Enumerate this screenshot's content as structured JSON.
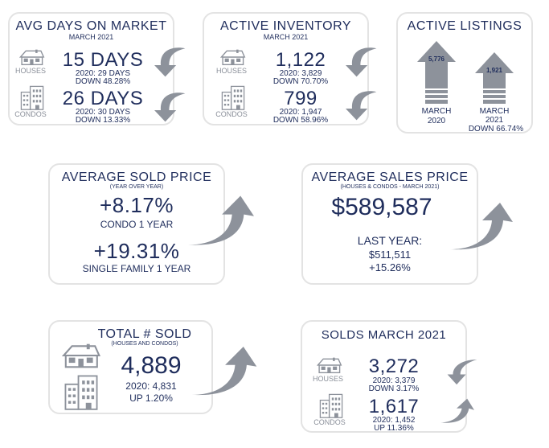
{
  "avg_days": {
    "title": "AVG DAYS ON MARKET",
    "period": "MARCH 2021",
    "houses_label": "HOUSES",
    "houses_value": "15 DAYS",
    "houses_prev": "2020: 29 DAYS",
    "houses_change": "DOWN 48.28%",
    "condos_label": "CONDOS",
    "condos_value": "26 DAYS",
    "condos_prev": "2020: 30 DAYS",
    "condos_change": "DOWN 13.33%"
  },
  "active_inventory": {
    "title": "ACTIVE INVENTORY",
    "period": "MARCH 2021",
    "houses_label": "HOUSES",
    "houses_value": "1,122",
    "houses_prev": "2020: 3,829",
    "houses_change": "DOWN 70.70%",
    "condos_label": "CONDOS",
    "condos_value": "799",
    "condos_prev": "2020: 1,947",
    "condos_change": "DOWN 58.96%"
  },
  "active_listings": {
    "title": "ACTIVE LISTINGS",
    "left_value": "5,776",
    "left_label_1": "MARCH",
    "left_label_2": "2020",
    "right_value": "1,921",
    "right_label_1": "MARCH",
    "right_label_2": "2021",
    "right_change": "DOWN 66.74%"
  },
  "avg_sold_price": {
    "title": "AVERAGE SOLD PRICE",
    "subtitle": "(YEAR OVER YEAR)",
    "condo_value": "+8.17%",
    "condo_label": "CONDO 1 YEAR",
    "sf_value": "+19.31%",
    "sf_label": "SINGLE FAMILY 1 YEAR"
  },
  "avg_sales_price": {
    "title": "AVERAGE SALES PRICE",
    "subtitle": "(HOUSES & CONDOS - MARCH 2021)",
    "value": "$589,587",
    "last_year_label": "LAST YEAR:",
    "last_year_value": "$511,511",
    "change": "+15.26%"
  },
  "total_sold": {
    "title": "TOTAL # SOLD",
    "subtitle": "(HOUSES AND CONDOS)",
    "value": "4,889",
    "prev": "2020: 4,831",
    "change": "UP 1.20%"
  },
  "solds_march": {
    "title": "SOLDS MARCH 2021",
    "houses_label": "HOUSES",
    "houses_value": "3,272",
    "houses_prev": "2020: 3,379",
    "houses_change": "DOWN 3.17%",
    "condos_label": "CONDOS",
    "condos_value": "1,617",
    "condos_prev": "2020: 1,452",
    "condos_change": "UP 11.36%"
  },
  "icons": [
    "house-icon",
    "condo-building-icon",
    "curved-arrow-down-icon",
    "curved-arrow-up-icon",
    "up-arrow-bar-icon"
  ],
  "colors": {
    "navy": "#1f2d5c",
    "arrow_gray": "#8d929b",
    "label_gray": "#8a8f99",
    "border": "#e3e3e3"
  }
}
